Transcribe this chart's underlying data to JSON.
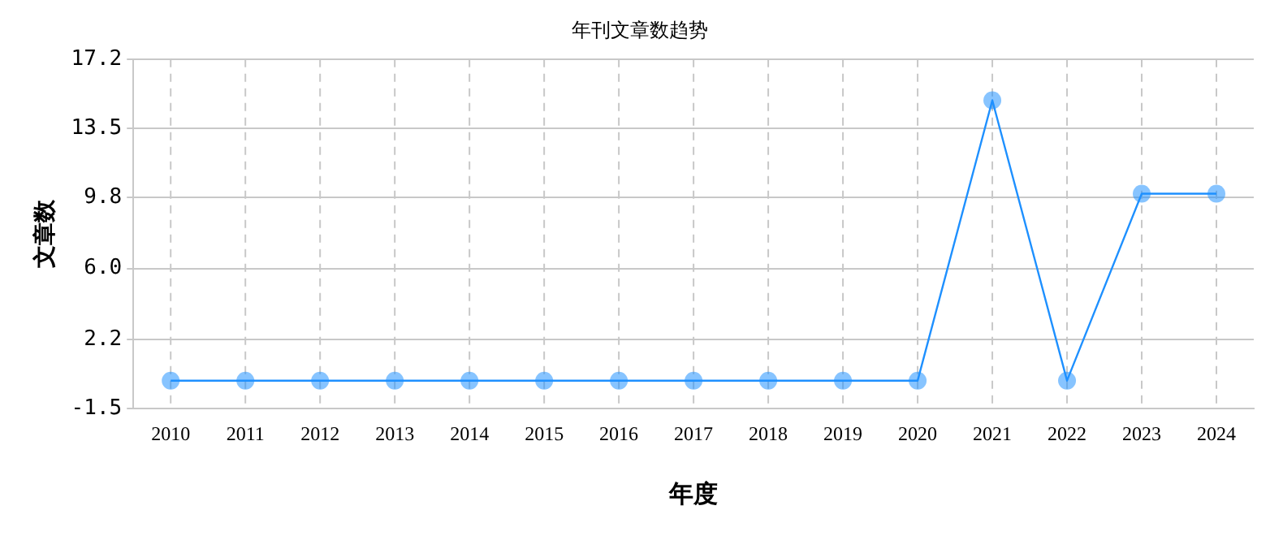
{
  "chart_data": {
    "type": "line",
    "title": "年刊文章数趋势",
    "xlabel": "年度",
    "ylabel": "文章数",
    "categories": [
      "2010",
      "2011",
      "2012",
      "2013",
      "2014",
      "2015",
      "2016",
      "2017",
      "2018",
      "2019",
      "2020",
      "2021",
      "2022",
      "2023",
      "2024"
    ],
    "series": [
      {
        "color": "#1e90ff",
        "values": [
          0,
          0,
          0,
          0,
          0,
          0,
          0,
          0,
          0,
          0,
          0,
          15,
          0,
          10,
          10
        ]
      }
    ],
    "ylim": [
      -1.5,
      17.2
    ],
    "yticks": [
      -1.5,
      2.2,
      {
        "value": 6,
        "label": "6.0"
      },
      9.8,
      13.5,
      17.2
    ],
    "grid": true,
    "legend": false,
    "marker": "circle",
    "line_style": "solid"
  }
}
